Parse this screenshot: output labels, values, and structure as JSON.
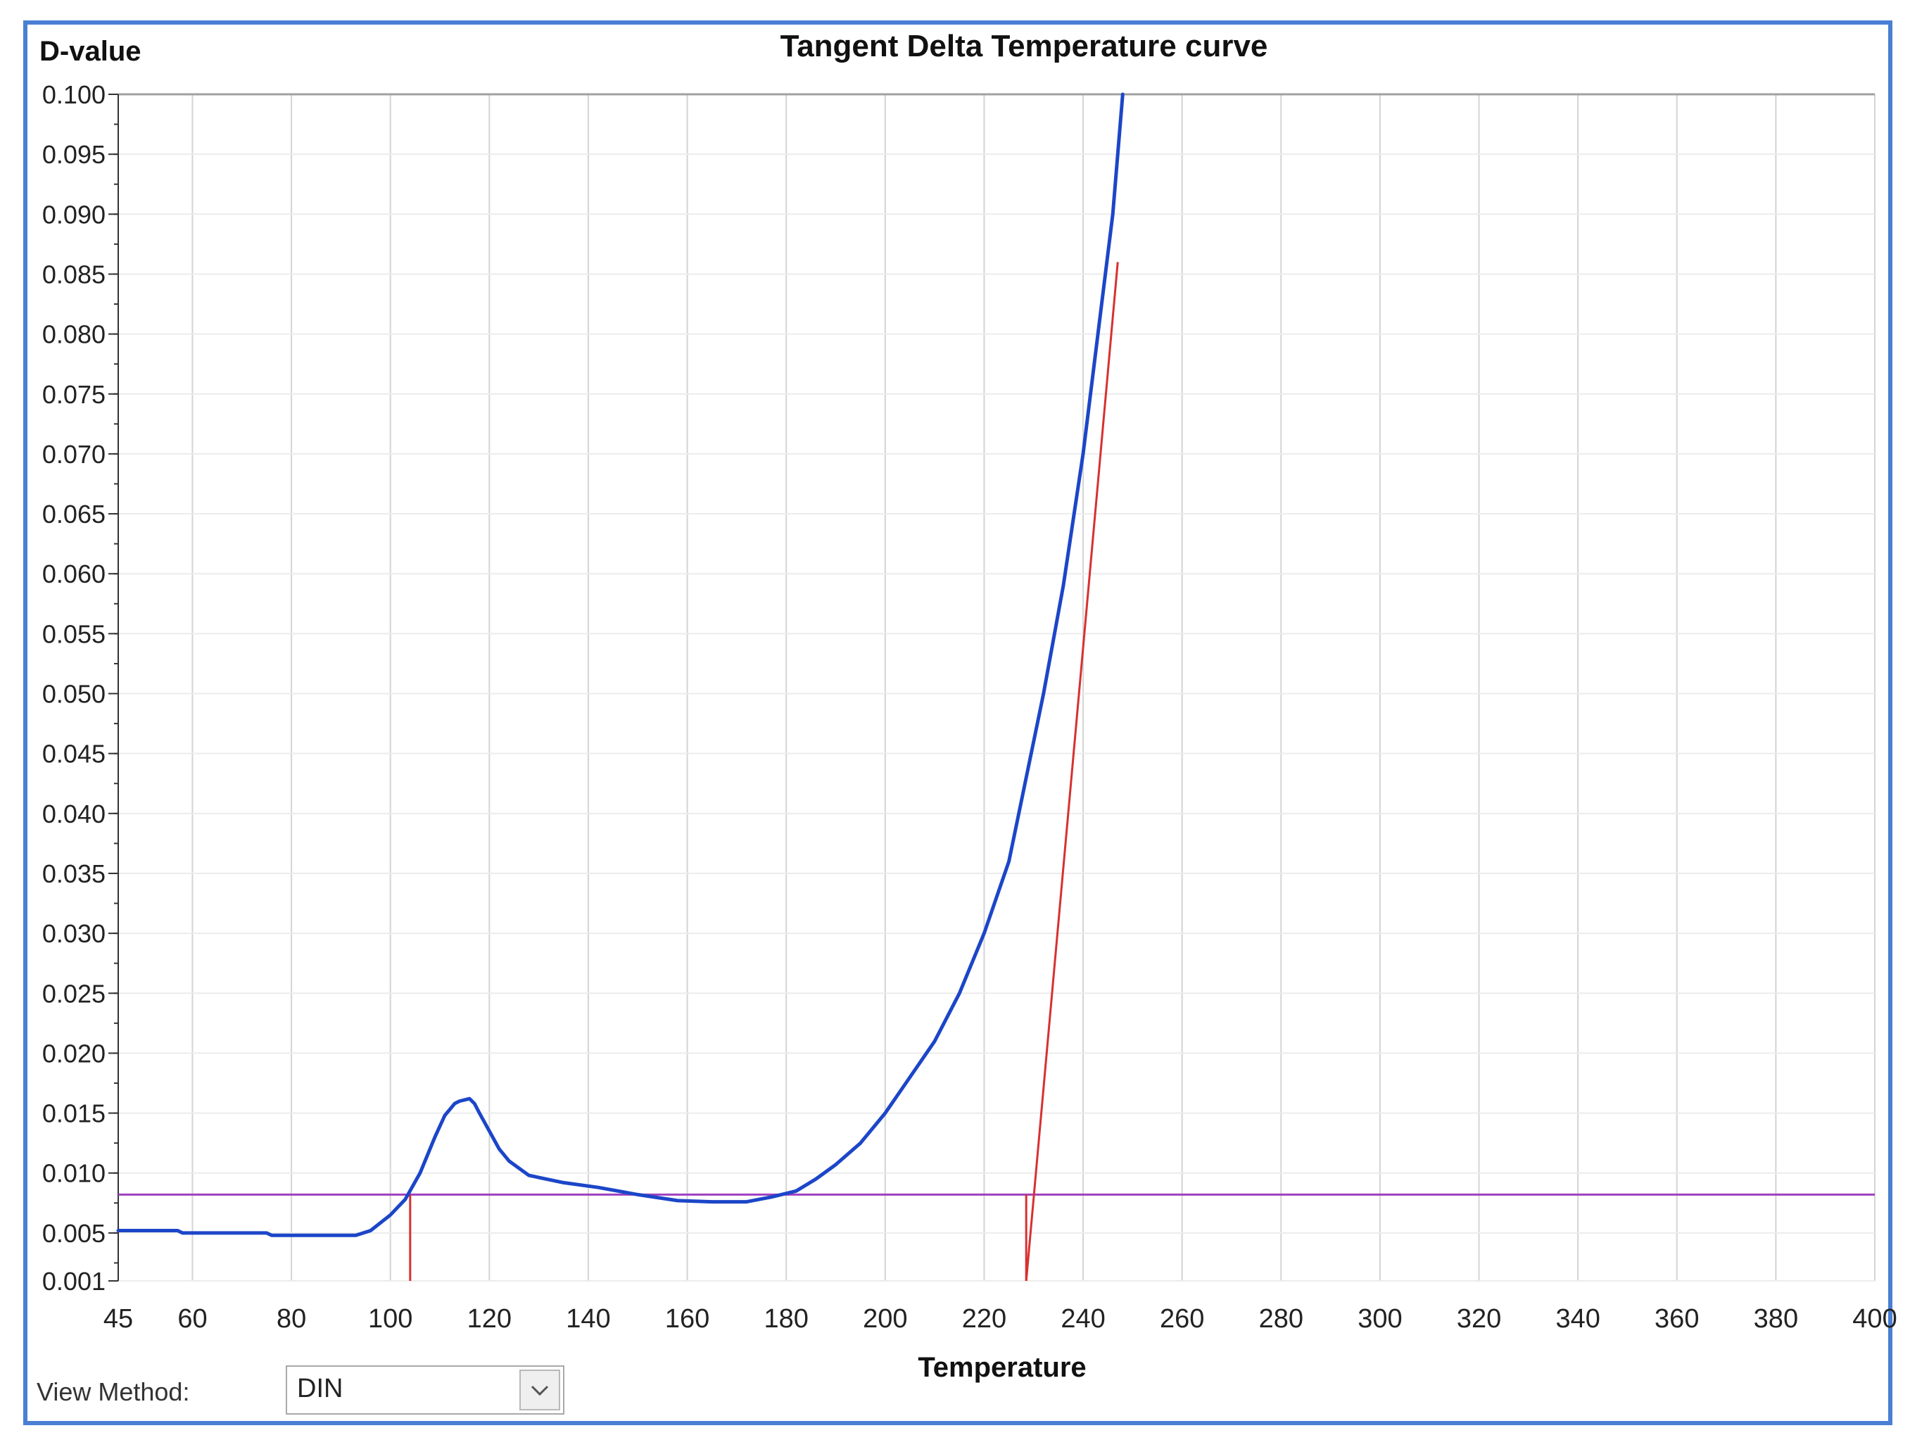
{
  "window": {
    "border_color": "#4a7fd4"
  },
  "chart_data": {
    "type": "line",
    "title": "Tangent Delta Temperature curve",
    "xlabel": "Temperature",
    "ylabel": "D-value",
    "xlim": [
      45,
      400
    ],
    "ylim": [
      0.001,
      0.1
    ],
    "x_ticks": [
      45,
      60,
      80,
      100,
      120,
      140,
      160,
      180,
      200,
      220,
      240,
      260,
      280,
      300,
      320,
      340,
      360,
      380,
      400
    ],
    "y_ticks": [
      0.001,
      0.005,
      0.01,
      0.015,
      0.02,
      0.025,
      0.03,
      0.035,
      0.04,
      0.045,
      0.05,
      0.055,
      0.06,
      0.065,
      0.07,
      0.075,
      0.08,
      0.085,
      0.09,
      0.095,
      0.1
    ],
    "y_tick_labels": [
      "0.001",
      "0.005",
      "0.010",
      "0.015",
      "0.020",
      "0.025",
      "0.030",
      "0.035",
      "0.040",
      "0.045",
      "0.050",
      "0.055",
      "0.060",
      "0.065",
      "0.070",
      "0.075",
      "0.080",
      "0.085",
      "0.090",
      "0.095",
      "0.100"
    ],
    "grid": true,
    "series": [
      {
        "color": "#1c46c8",
        "x": [
          45,
          57,
          58,
          75,
          76,
          93,
          96,
          100,
          103,
          106,
          109,
          111,
          113,
          114,
          115,
          116,
          117,
          118,
          120,
          122,
          124,
          128,
          135,
          142,
          150,
          158,
          165,
          172,
          177,
          182,
          186,
          190,
          195,
          200,
          205,
          210,
          215,
          220,
          225,
          228,
          232,
          236,
          240,
          243,
          246,
          248
        ],
        "y": [
          0.0052,
          0.0052,
          0.005,
          0.005,
          0.0048,
          0.0048,
          0.0052,
          0.0065,
          0.0078,
          0.01,
          0.013,
          0.0148,
          0.0158,
          0.016,
          0.0161,
          0.0162,
          0.0158,
          0.015,
          0.0135,
          0.012,
          0.011,
          0.0098,
          0.0092,
          0.0088,
          0.0082,
          0.0077,
          0.0076,
          0.0076,
          0.008,
          0.0085,
          0.0095,
          0.0107,
          0.0125,
          0.015,
          0.018,
          0.021,
          0.025,
          0.03,
          0.036,
          0.042,
          0.05,
          0.059,
          0.07,
          0.08,
          0.09,
          0.1
        ]
      }
    ],
    "threshold": {
      "y": 0.0082,
      "color": "#a040c0"
    },
    "tangent_lines": {
      "color": "#d83030",
      "line": {
        "x1": 228.5,
        "y1": 0.001,
        "x2": 247,
        "y2": 0.086
      },
      "markers": [
        {
          "x": 104,
          "y1": 0.001,
          "y2": 0.0082
        },
        {
          "x": 228.5,
          "y1": 0.001,
          "y2": 0.0082
        }
      ]
    }
  },
  "footer": {
    "view_method_label": "View Method:",
    "view_method_value": "DIN",
    "dropdown_icon": "chevron-down-icon"
  }
}
